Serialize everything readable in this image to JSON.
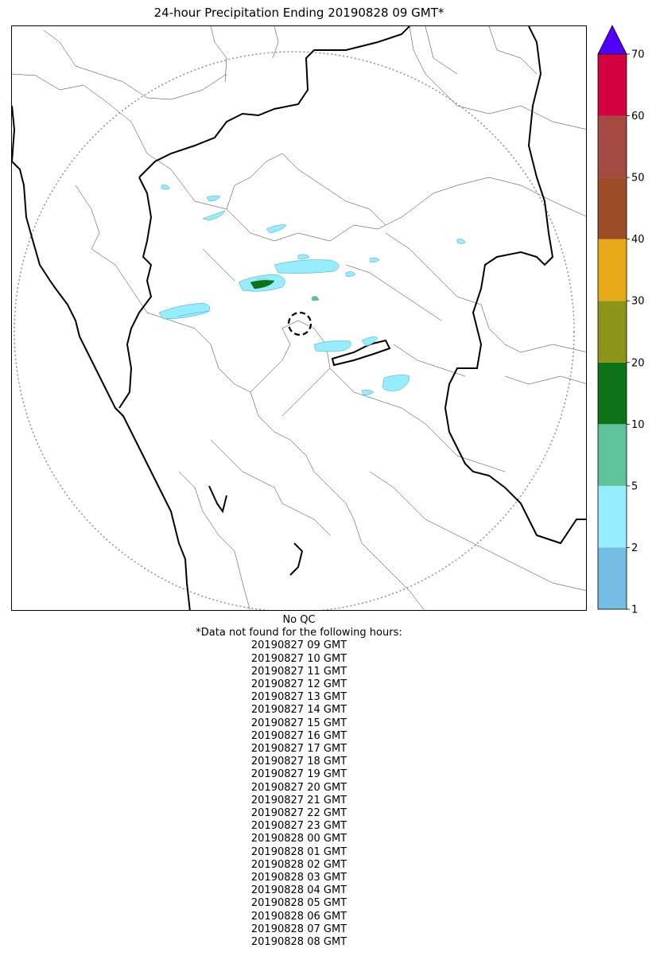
{
  "title": "24-hour Precipitation Ending 20190828 09 GMT*",
  "qc_label": "No QC",
  "missing_header": "*Data not found for the following hours:",
  "missing_hours": [
    "20190827 09 GMT",
    "20190827 10 GMT",
    "20190827 11 GMT",
    "20190827 12 GMT",
    "20190827 13 GMT",
    "20190827 14 GMT",
    "20190827 15 GMT",
    "20190827 16 GMT",
    "20190827 17 GMT",
    "20190827 18 GMT",
    "20190827 19 GMT",
    "20190827 20 GMT",
    "20190827 21 GMT",
    "20190827 22 GMT",
    "20190827 23 GMT",
    "20190828 00 GMT",
    "20190828 01 GMT",
    "20190828 02 GMT",
    "20190828 03 GMT",
    "20190828 04 GMT",
    "20190828 05 GMT",
    "20190828 06 GMT",
    "20190828 07 GMT",
    "20190828 08 GMT"
  ],
  "colorbar": {
    "ticks": [
      "1",
      "2",
      "5",
      "10",
      "20",
      "30",
      "40",
      "50",
      "60",
      "70"
    ],
    "colors": [
      "#74bde3",
      "#96edfd",
      "#5ec39b",
      "#0d7218",
      "#8c9517",
      "#e7aa19",
      "#9b4c27",
      "#a44a42",
      "#d5003f"
    ],
    "extend_color": "#5000ff"
  },
  "map": {
    "coast_color": "#000000",
    "district_color": "#333333",
    "range_ring_color": "#888888"
  }
}
